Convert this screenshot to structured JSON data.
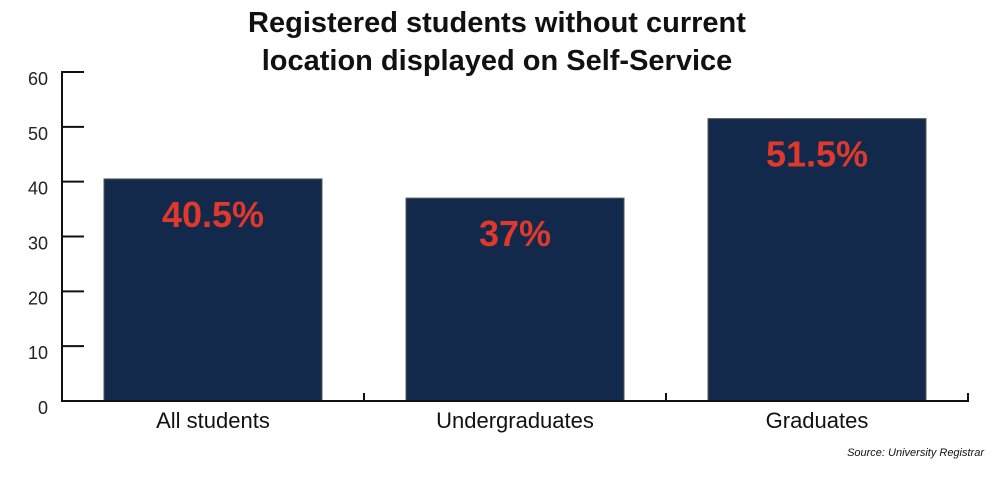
{
  "chart_data": {
    "type": "bar",
    "title": "Registered students without current location displayed on Self-Service",
    "title_lines": [
      "Registered students without current",
      "location displayed on Self-Service"
    ],
    "categories": [
      "All students",
      "Undergraduates",
      "Graduates"
    ],
    "values": [
      40.5,
      37,
      51.5
    ],
    "value_labels": [
      "40.5%",
      "37%",
      "51.5%"
    ],
    "xlabel": "",
    "ylabel": "",
    "ylim": [
      0,
      60
    ],
    "yticks": [
      0,
      10,
      20,
      30,
      40,
      50,
      60
    ],
    "grid": false,
    "legend": null,
    "bar_color": "#13294b",
    "label_color": "#e0392b",
    "source": "Source: University Registrar"
  }
}
